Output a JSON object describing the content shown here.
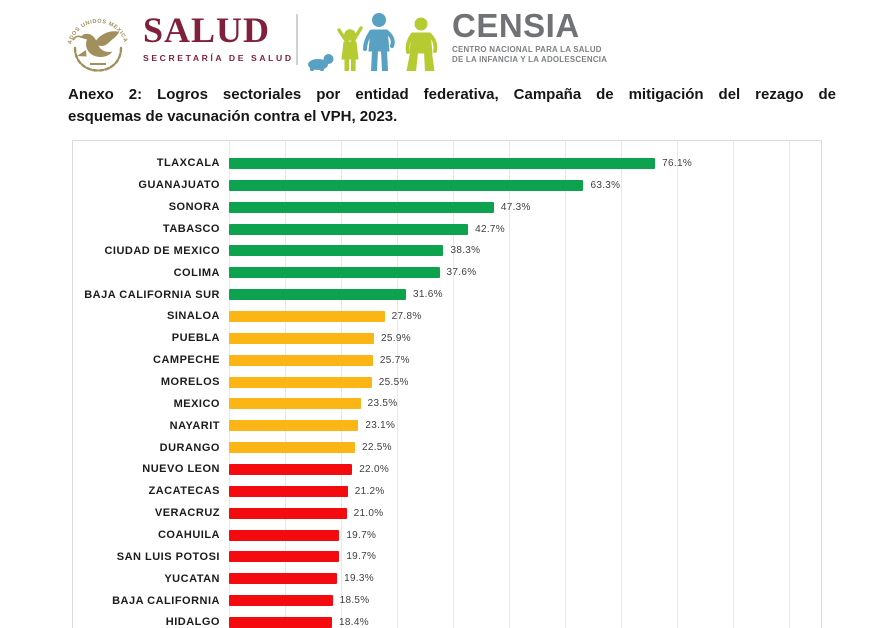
{
  "header": {
    "seal": {
      "text": "ESTADOS UNIDOS MEXICANOS",
      "color": "#A28F5E"
    },
    "salud": {
      "wordmark": "SALUD",
      "subtitle": "SECRETARÍA DE SALUD",
      "color": "#81203A"
    },
    "censia": {
      "wordmark": "CENSIA",
      "subtitle_line1": "CENTRO NACIONAL PARA LA SALUD",
      "subtitle_line2": "DE LA INFANCIA Y LA ADOLESCENCIA",
      "wordmark_color": "#717276",
      "figure_blue": "#59A1C2",
      "figure_green": "#B6CB32"
    }
  },
  "title": {
    "line1": "Anexo 2: Logros sectoriales por entidad federativa, Campaña de mitigación del rezago de",
    "line2": "esquemas de vacunación contra el VPH, 2023."
  },
  "chart_data": {
    "type": "bar",
    "orientation": "horizontal",
    "title": "Anexo 2: Logros sectoriales por entidad federativa, Campaña de mitigación del rezago de esquemas de vacunación contra el VPH, 2023.",
    "xlabel": "",
    "ylabel": "",
    "unit": "%",
    "xlim": [
      0,
      106
    ],
    "grid": "vertical",
    "gridlines": {
      "interval_percent": 10,
      "count": 11
    },
    "value_labels": "outside-end, one decimal + %",
    "categories": [
      "TLAXCALA",
      "GUANAJUATO",
      "SONORA",
      "TABASCO",
      "CIUDAD DE MEXICO",
      "COLIMA",
      "BAJA CALIFORNIA SUR",
      "SINALOA",
      "PUEBLA",
      "CAMPECHE",
      "MORELOS",
      "MEXICO",
      "NAYARIT",
      "DURANGO",
      "NUEVO LEON",
      "ZACATECAS",
      "VERACRUZ",
      "COAHUILA",
      "SAN LUIS POTOSI",
      "YUCATAN",
      "BAJA CALIFORNIA",
      "HIDALGO"
    ],
    "values": [
      76.1,
      63.3,
      47.3,
      42.7,
      38.3,
      37.6,
      31.6,
      27.8,
      25.9,
      25.7,
      25.5,
      23.5,
      23.1,
      22.5,
      22.0,
      21.2,
      21.0,
      19.7,
      19.7,
      19.3,
      18.5,
      18.4
    ],
    "color_groups": [
      "green",
      "green",
      "green",
      "green",
      "green",
      "green",
      "green",
      "yellow",
      "yellow",
      "yellow",
      "yellow",
      "yellow",
      "yellow",
      "yellow",
      "red",
      "red",
      "red",
      "red",
      "red",
      "red",
      "red",
      "red"
    ],
    "palette": {
      "green": "#0CA24E",
      "yellow": "#FBB615",
      "red": "#F40B10"
    }
  }
}
